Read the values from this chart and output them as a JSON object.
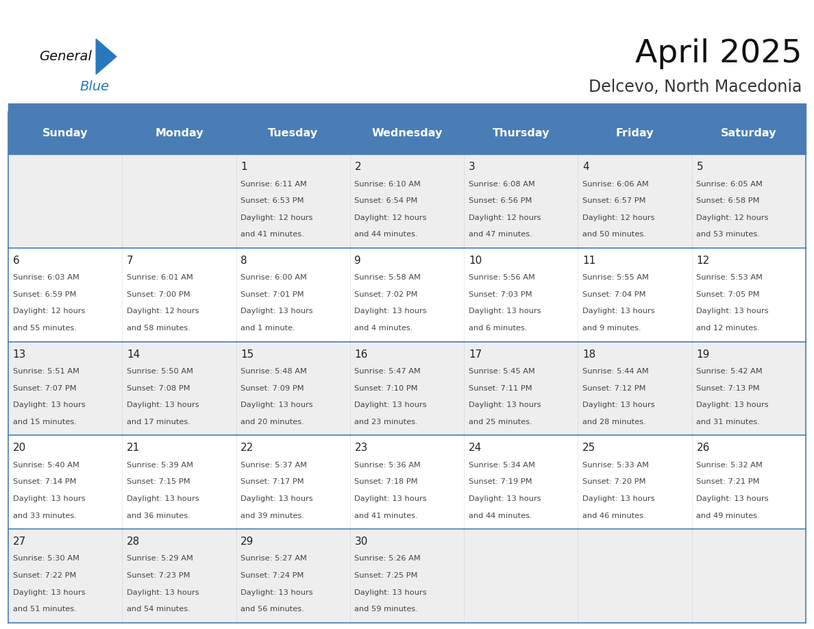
{
  "title": "April 2025",
  "subtitle": "Delcevo, North Macedonia",
  "days_of_week": [
    "Sunday",
    "Monday",
    "Tuesday",
    "Wednesday",
    "Thursday",
    "Friday",
    "Saturday"
  ],
  "header_bg": "#4a7db5",
  "header_text_color": "#ffffff",
  "cell_bg_row0": "#eeeeee",
  "cell_bg_row1": "#ffffff",
  "cell_bg_row2": "#eeeeee",
  "cell_bg_row3": "#ffffff",
  "cell_bg_row4": "#eeeeee",
  "border_color": "#4a7db5",
  "day_num_color": "#222222",
  "text_color": "#444444",
  "fig_width": 11.88,
  "fig_height": 9.18,
  "dpi": 100,
  "calendar_data": [
    [
      {
        "day": "",
        "sunrise": "",
        "sunset": "",
        "daylight_line1": "",
        "daylight_line2": ""
      },
      {
        "day": "",
        "sunrise": "",
        "sunset": "",
        "daylight_line1": "",
        "daylight_line2": ""
      },
      {
        "day": "1",
        "sunrise": "Sunrise: 6:11 AM",
        "sunset": "Sunset: 6:53 PM",
        "daylight_line1": "Daylight: 12 hours",
        "daylight_line2": "and 41 minutes."
      },
      {
        "day": "2",
        "sunrise": "Sunrise: 6:10 AM",
        "sunset": "Sunset: 6:54 PM",
        "daylight_line1": "Daylight: 12 hours",
        "daylight_line2": "and 44 minutes."
      },
      {
        "day": "3",
        "sunrise": "Sunrise: 6:08 AM",
        "sunset": "Sunset: 6:56 PM",
        "daylight_line1": "Daylight: 12 hours",
        "daylight_line2": "and 47 minutes."
      },
      {
        "day": "4",
        "sunrise": "Sunrise: 6:06 AM",
        "sunset": "Sunset: 6:57 PM",
        "daylight_line1": "Daylight: 12 hours",
        "daylight_line2": "and 50 minutes."
      },
      {
        "day": "5",
        "sunrise": "Sunrise: 6:05 AM",
        "sunset": "Sunset: 6:58 PM",
        "daylight_line1": "Daylight: 12 hours",
        "daylight_line2": "and 53 minutes."
      }
    ],
    [
      {
        "day": "6",
        "sunrise": "Sunrise: 6:03 AM",
        "sunset": "Sunset: 6:59 PM",
        "daylight_line1": "Daylight: 12 hours",
        "daylight_line2": "and 55 minutes."
      },
      {
        "day": "7",
        "sunrise": "Sunrise: 6:01 AM",
        "sunset": "Sunset: 7:00 PM",
        "daylight_line1": "Daylight: 12 hours",
        "daylight_line2": "and 58 minutes."
      },
      {
        "day": "8",
        "sunrise": "Sunrise: 6:00 AM",
        "sunset": "Sunset: 7:01 PM",
        "daylight_line1": "Daylight: 13 hours",
        "daylight_line2": "and 1 minute."
      },
      {
        "day": "9",
        "sunrise": "Sunrise: 5:58 AM",
        "sunset": "Sunset: 7:02 PM",
        "daylight_line1": "Daylight: 13 hours",
        "daylight_line2": "and 4 minutes."
      },
      {
        "day": "10",
        "sunrise": "Sunrise: 5:56 AM",
        "sunset": "Sunset: 7:03 PM",
        "daylight_line1": "Daylight: 13 hours",
        "daylight_line2": "and 6 minutes."
      },
      {
        "day": "11",
        "sunrise": "Sunrise: 5:55 AM",
        "sunset": "Sunset: 7:04 PM",
        "daylight_line1": "Daylight: 13 hours",
        "daylight_line2": "and 9 minutes."
      },
      {
        "day": "12",
        "sunrise": "Sunrise: 5:53 AM",
        "sunset": "Sunset: 7:05 PM",
        "daylight_line1": "Daylight: 13 hours",
        "daylight_line2": "and 12 minutes."
      }
    ],
    [
      {
        "day": "13",
        "sunrise": "Sunrise: 5:51 AM",
        "sunset": "Sunset: 7:07 PM",
        "daylight_line1": "Daylight: 13 hours",
        "daylight_line2": "and 15 minutes."
      },
      {
        "day": "14",
        "sunrise": "Sunrise: 5:50 AM",
        "sunset": "Sunset: 7:08 PM",
        "daylight_line1": "Daylight: 13 hours",
        "daylight_line2": "and 17 minutes."
      },
      {
        "day": "15",
        "sunrise": "Sunrise: 5:48 AM",
        "sunset": "Sunset: 7:09 PM",
        "daylight_line1": "Daylight: 13 hours",
        "daylight_line2": "and 20 minutes."
      },
      {
        "day": "16",
        "sunrise": "Sunrise: 5:47 AM",
        "sunset": "Sunset: 7:10 PM",
        "daylight_line1": "Daylight: 13 hours",
        "daylight_line2": "and 23 minutes."
      },
      {
        "day": "17",
        "sunrise": "Sunrise: 5:45 AM",
        "sunset": "Sunset: 7:11 PM",
        "daylight_line1": "Daylight: 13 hours",
        "daylight_line2": "and 25 minutes."
      },
      {
        "day": "18",
        "sunrise": "Sunrise: 5:44 AM",
        "sunset": "Sunset: 7:12 PM",
        "daylight_line1": "Daylight: 13 hours",
        "daylight_line2": "and 28 minutes."
      },
      {
        "day": "19",
        "sunrise": "Sunrise: 5:42 AM",
        "sunset": "Sunset: 7:13 PM",
        "daylight_line1": "Daylight: 13 hours",
        "daylight_line2": "and 31 minutes."
      }
    ],
    [
      {
        "day": "20",
        "sunrise": "Sunrise: 5:40 AM",
        "sunset": "Sunset: 7:14 PM",
        "daylight_line1": "Daylight: 13 hours",
        "daylight_line2": "and 33 minutes."
      },
      {
        "day": "21",
        "sunrise": "Sunrise: 5:39 AM",
        "sunset": "Sunset: 7:15 PM",
        "daylight_line1": "Daylight: 13 hours",
        "daylight_line2": "and 36 minutes."
      },
      {
        "day": "22",
        "sunrise": "Sunrise: 5:37 AM",
        "sunset": "Sunset: 7:17 PM",
        "daylight_line1": "Daylight: 13 hours",
        "daylight_line2": "and 39 minutes."
      },
      {
        "day": "23",
        "sunrise": "Sunrise: 5:36 AM",
        "sunset": "Sunset: 7:18 PM",
        "daylight_line1": "Daylight: 13 hours",
        "daylight_line2": "and 41 minutes."
      },
      {
        "day": "24",
        "sunrise": "Sunrise: 5:34 AM",
        "sunset": "Sunset: 7:19 PM",
        "daylight_line1": "Daylight: 13 hours",
        "daylight_line2": "and 44 minutes."
      },
      {
        "day": "25",
        "sunrise": "Sunrise: 5:33 AM",
        "sunset": "Sunset: 7:20 PM",
        "daylight_line1": "Daylight: 13 hours",
        "daylight_line2": "and 46 minutes."
      },
      {
        "day": "26",
        "sunrise": "Sunrise: 5:32 AM",
        "sunset": "Sunset: 7:21 PM",
        "daylight_line1": "Daylight: 13 hours",
        "daylight_line2": "and 49 minutes."
      }
    ],
    [
      {
        "day": "27",
        "sunrise": "Sunrise: 5:30 AM",
        "sunset": "Sunset: 7:22 PM",
        "daylight_line1": "Daylight: 13 hours",
        "daylight_line2": "and 51 minutes."
      },
      {
        "day": "28",
        "sunrise": "Sunrise: 5:29 AM",
        "sunset": "Sunset: 7:23 PM",
        "daylight_line1": "Daylight: 13 hours",
        "daylight_line2": "and 54 minutes."
      },
      {
        "day": "29",
        "sunrise": "Sunrise: 5:27 AM",
        "sunset": "Sunset: 7:24 PM",
        "daylight_line1": "Daylight: 13 hours",
        "daylight_line2": "and 56 minutes."
      },
      {
        "day": "30",
        "sunrise": "Sunrise: 5:26 AM",
        "sunset": "Sunset: 7:25 PM",
        "daylight_line1": "Daylight: 13 hours",
        "daylight_line2": "and 59 minutes."
      },
      {
        "day": "",
        "sunrise": "",
        "sunset": "",
        "daylight_line1": "",
        "daylight_line2": ""
      },
      {
        "day": "",
        "sunrise": "",
        "sunset": "",
        "daylight_line1": "",
        "daylight_line2": ""
      },
      {
        "day": "",
        "sunrise": "",
        "sunset": "",
        "daylight_line1": "",
        "daylight_line2": ""
      }
    ]
  ],
  "logo_text_general": "General",
  "logo_text_blue": "Blue",
  "logo_color_general": "#111111",
  "logo_color_blue": "#2878c0",
  "logo_triangle_color": "#2878c0"
}
